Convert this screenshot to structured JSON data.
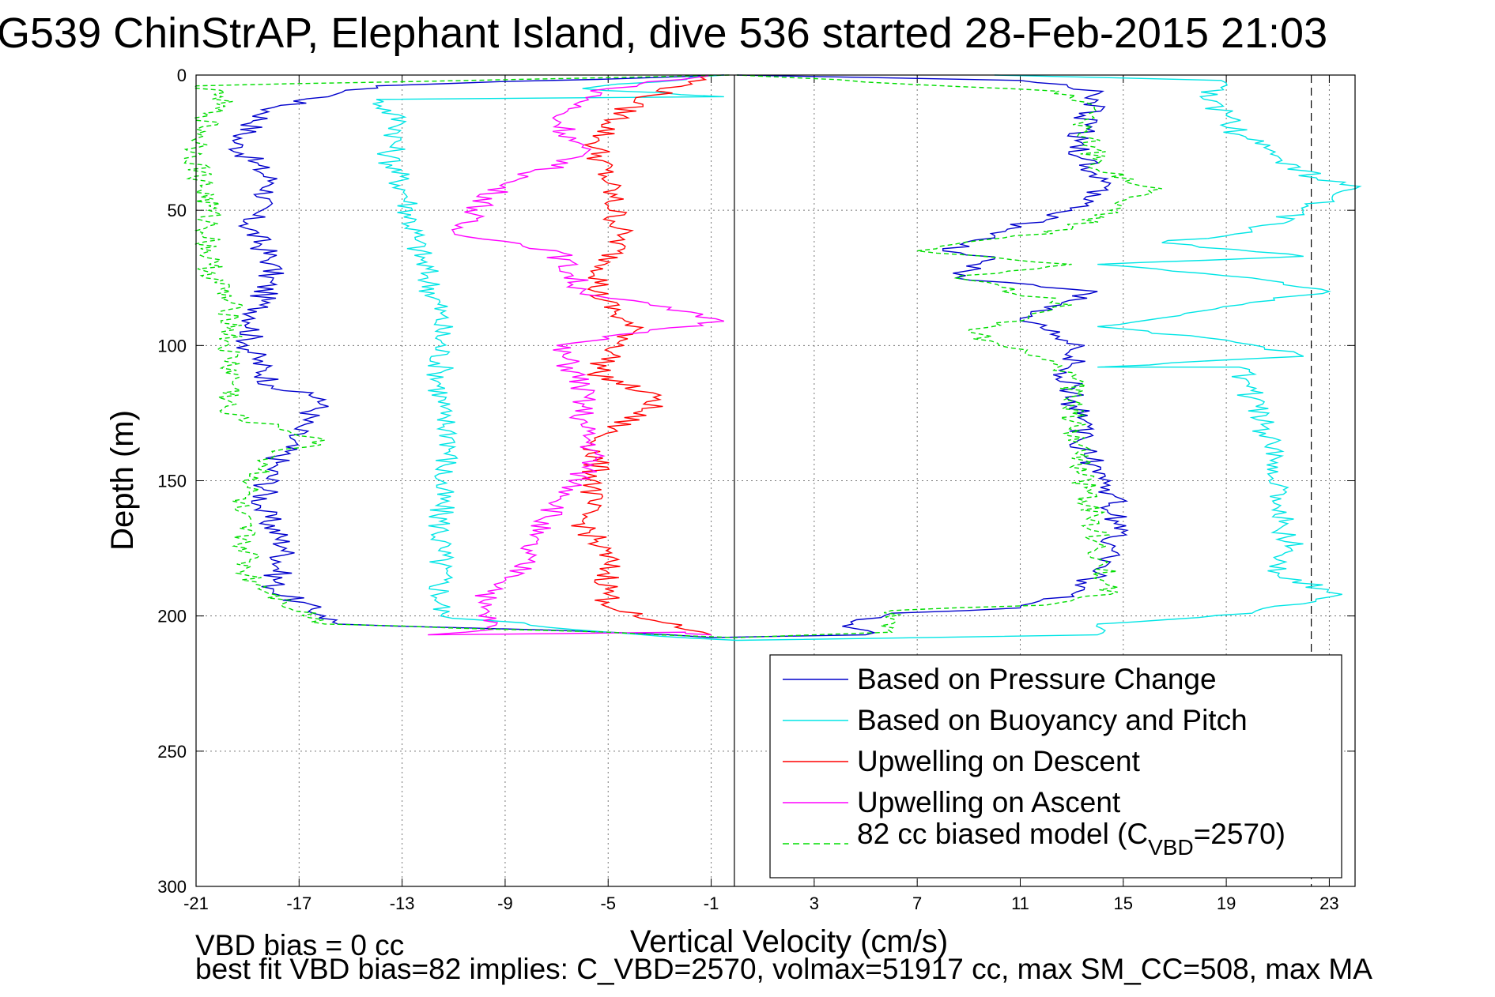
{
  "chart_data": {
    "type": "line",
    "title": "G539 ChinStrAP, Elephant Island, dive 536 started 28-Feb-2015 21:03",
    "xlabel": "Vertical Velocity (cm/s)",
    "ylabel": "Depth (m)",
    "xlim": [
      -21,
      24
    ],
    "ylim": [
      0,
      300
    ],
    "y_reversed": true,
    "xticks": [
      "-21",
      "-17",
      "-13",
      "-9",
      "-5",
      "-1",
      "3",
      "7",
      "11",
      "15",
      "19",
      "23"
    ],
    "yticks": [
      "0",
      "50",
      "100",
      "150",
      "200",
      "250",
      "300"
    ],
    "grid": true,
    "legend_position": "bottom-right",
    "vline_solid_x": -0.1,
    "vline_dashed_x": 22.3,
    "series": [
      {
        "name": "Based on Pressure Change",
        "color": "#0000cc",
        "style": "solid",
        "points": [
          [
            -0.5,
            0
          ],
          [
            -14,
            4
          ],
          [
            -18,
            12
          ],
          [
            -19.5,
            25
          ],
          [
            -18,
            40
          ],
          [
            -19,
            55
          ],
          [
            -18,
            70
          ],
          [
            -18.5,
            85
          ],
          [
            -19,
            100
          ],
          [
            -18,
            115
          ],
          [
            -16,
            120
          ],
          [
            -17,
            130
          ],
          [
            -18,
            145
          ],
          [
            -18.5,
            160
          ],
          [
            -17.5,
            175
          ],
          [
            -18,
            190
          ],
          [
            -16,
            200
          ],
          [
            -15.5,
            203
          ],
          [
            -5,
            206
          ],
          [
            -1,
            208
          ],
          [
            5,
            207
          ],
          [
            4.5,
            203
          ],
          [
            6,
            199
          ],
          [
            11,
            197
          ],
          [
            13,
            192
          ],
          [
            14.5,
            180
          ],
          [
            14.8,
            165
          ],
          [
            14.5,
            150
          ],
          [
            13.5,
            140
          ],
          [
            13.2,
            125
          ],
          [
            12.8,
            110
          ],
          [
            13.5,
            100
          ],
          [
            11,
            90
          ],
          [
            14,
            80
          ],
          [
            8.5,
            75
          ],
          [
            10,
            68
          ],
          [
            8,
            65
          ],
          [
            10.5,
            57
          ],
          [
            13,
            50
          ],
          [
            14.5,
            40
          ],
          [
            13.2,
            30
          ],
          [
            13.5,
            15
          ],
          [
            14.2,
            6
          ],
          [
            11,
            2
          ],
          [
            0,
            0
          ]
        ]
      },
      {
        "name": "Based on Buoyancy and Pitch",
        "color": "#00e5e5",
        "style": "solid",
        "points": [
          [
            -0.5,
            0
          ],
          [
            -6,
            5
          ],
          [
            -0.5,
            8
          ],
          [
            -14,
            9
          ],
          [
            -13,
            18
          ],
          [
            -13.5,
            30
          ],
          [
            -12.8,
            45
          ],
          [
            -12.5,
            60
          ],
          [
            -12,
            75
          ],
          [
            -11.5,
            88
          ],
          [
            -11.5,
            110
          ],
          [
            -11.5,
            125
          ],
          [
            -11,
            135
          ],
          [
            -11.5,
            150
          ],
          [
            -11.5,
            175
          ],
          [
            -11.5,
            200
          ],
          [
            -5,
            206
          ],
          [
            0,
            209
          ],
          [
            14,
            207
          ],
          [
            14,
            203
          ],
          [
            20,
            199
          ],
          [
            23.5,
            192
          ],
          [
            21,
            185
          ],
          [
            21.5,
            175
          ],
          [
            21,
            160
          ],
          [
            21,
            145
          ],
          [
            20.5,
            130
          ],
          [
            19.8,
            115
          ],
          [
            19.5,
            108
          ],
          [
            14,
            108
          ],
          [
            22,
            104
          ],
          [
            19,
            98
          ],
          [
            14,
            93
          ],
          [
            23,
            80
          ],
          [
            20,
            75
          ],
          [
            14,
            70
          ],
          [
            22,
            67
          ],
          [
            16.5,
            62
          ],
          [
            20,
            58
          ],
          [
            22,
            50
          ],
          [
            24,
            42
          ],
          [
            22.5,
            38
          ],
          [
            21,
            30
          ],
          [
            19.5,
            22
          ],
          [
            19,
            15
          ],
          [
            18,
            8
          ],
          [
            18.8,
            2
          ],
          [
            10,
            0
          ]
        ]
      },
      {
        "name": "Upwelling on Descent",
        "color": "#ff0000",
        "style": "solid",
        "points": [
          [
            -1,
            0
          ],
          [
            -4,
            10
          ],
          [
            -5.5,
            25
          ],
          [
            -5,
            40
          ],
          [
            -4.5,
            60
          ],
          [
            -5.5,
            80
          ],
          [
            -4,
            95
          ],
          [
            -5.5,
            110
          ],
          [
            -3,
            120
          ],
          [
            -5.5,
            135
          ],
          [
            -5.5,
            150
          ],
          [
            -6,
            165
          ],
          [
            -5,
            180
          ],
          [
            -5,
            195
          ],
          [
            -4,
            200
          ],
          [
            -2,
            205
          ],
          [
            -1,
            207
          ]
        ]
      },
      {
        "name": "Upwelling on Ascent",
        "color": "#ff00ff",
        "style": "solid",
        "points": [
          [
            -1,
            0
          ],
          [
            -5,
            5
          ],
          [
            -7,
            15
          ],
          [
            -6,
            30
          ],
          [
            -9,
            40
          ],
          [
            -11,
            58
          ],
          [
            -7,
            65
          ],
          [
            -6,
            80
          ],
          [
            -0.5,
            91
          ],
          [
            -7,
            100
          ],
          [
            -6,
            115
          ],
          [
            -6,
            130
          ],
          [
            -5.5,
            140
          ],
          [
            -6.5,
            155
          ],
          [
            -8,
            170
          ],
          [
            -8.5,
            185
          ],
          [
            -10,
            195
          ],
          [
            -9.5,
            205
          ],
          [
            -12,
            207
          ],
          [
            -2,
            206
          ],
          [
            -1,
            207
          ]
        ]
      },
      {
        "name": "82 cc biased model (C_VBD=2570)",
        "color": "#00dd00",
        "style": "dashed",
        "points": [
          [
            -0.3,
            0
          ],
          [
            -21,
            4
          ],
          [
            -20,
            8
          ],
          [
            -20.5,
            15
          ],
          [
            -21,
            30
          ],
          [
            -20.5,
            50
          ],
          [
            -20.5,
            70
          ],
          [
            -19.5,
            90
          ],
          [
            -19.8,
            100
          ],
          [
            -19.5,
            115
          ],
          [
            -20,
            125
          ],
          [
            -16,
            135
          ],
          [
            -18,
            140
          ],
          [
            -19.5,
            160
          ],
          [
            -19,
            175
          ],
          [
            -19,
            185
          ],
          [
            -17.5,
            195
          ],
          [
            -16,
            203
          ],
          [
            -5,
            206
          ],
          [
            0,
            208
          ],
          [
            6,
            206
          ],
          [
            6,
            198
          ],
          [
            12,
            196
          ],
          [
            14.5,
            192
          ],
          [
            14,
            175
          ],
          [
            13.5,
            150
          ],
          [
            13,
            130
          ],
          [
            13,
            110
          ],
          [
            9,
            95
          ],
          [
            13,
            85
          ],
          [
            8.5,
            75
          ],
          [
            13,
            70
          ],
          [
            7,
            65
          ],
          [
            13,
            57
          ],
          [
            14.5,
            50
          ],
          [
            16.5,
            42
          ],
          [
            14,
            35
          ],
          [
            13.5,
            20
          ],
          [
            13.5,
            10
          ],
          [
            12.5,
            6
          ],
          [
            0,
            0
          ]
        ]
      }
    ]
  },
  "legend": {
    "entries": [
      "Based on Pressure Change",
      "Based on Buoyancy and Pitch",
      "Upwelling on Descent",
      "Upwelling on Ascent",
      "82 cc biased model (C",
      "VBD",
      "=2570)"
    ]
  },
  "footer": {
    "line1": "VBD bias = 0 cc",
    "line2": "best fit VBD bias=82 implies: C_VBD=2570, volmax=51917 cc, max SM_CC=508, max MA"
  }
}
